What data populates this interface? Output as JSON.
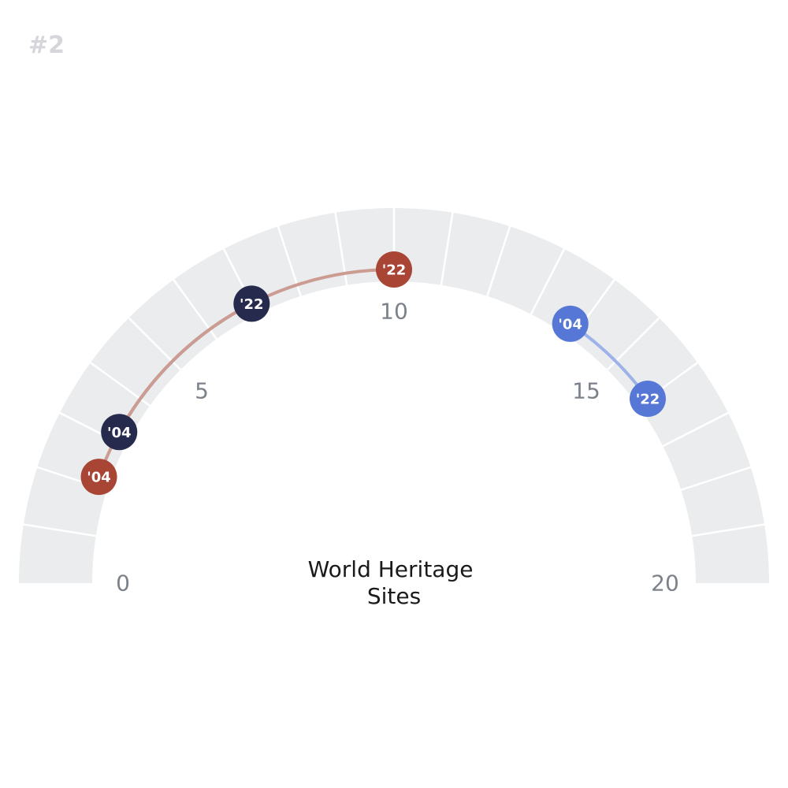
{
  "page_number": "#2",
  "chart_data": {
    "type": "radial-dumbbell",
    "title": "World Heritage\nSites",
    "axis": {
      "min": 0,
      "max": 20,
      "ticks": [
        0,
        5,
        10,
        15,
        20
      ],
      "segments": 20
    },
    "colors": {
      "track": "#eaeced",
      "divider": "#ffffff"
    },
    "series": [
      {
        "color": "#262b4d",
        "line_color": "#8e909c",
        "points": [
          {
            "label": "'04",
            "value": 3.2
          },
          {
            "label": "'22",
            "value": 7.0
          }
        ]
      },
      {
        "color": "#a84535",
        "line_color": "#cc9b91",
        "points": [
          {
            "label": "'04",
            "value": 2.2
          },
          {
            "label": "'22",
            "value": 10.0
          }
        ]
      },
      {
        "color": "#5677d6",
        "line_color": "#9eb2ea",
        "points": [
          {
            "label": "'04",
            "value": 13.8
          },
          {
            "label": "'22",
            "value": 16.0
          }
        ]
      }
    ]
  }
}
